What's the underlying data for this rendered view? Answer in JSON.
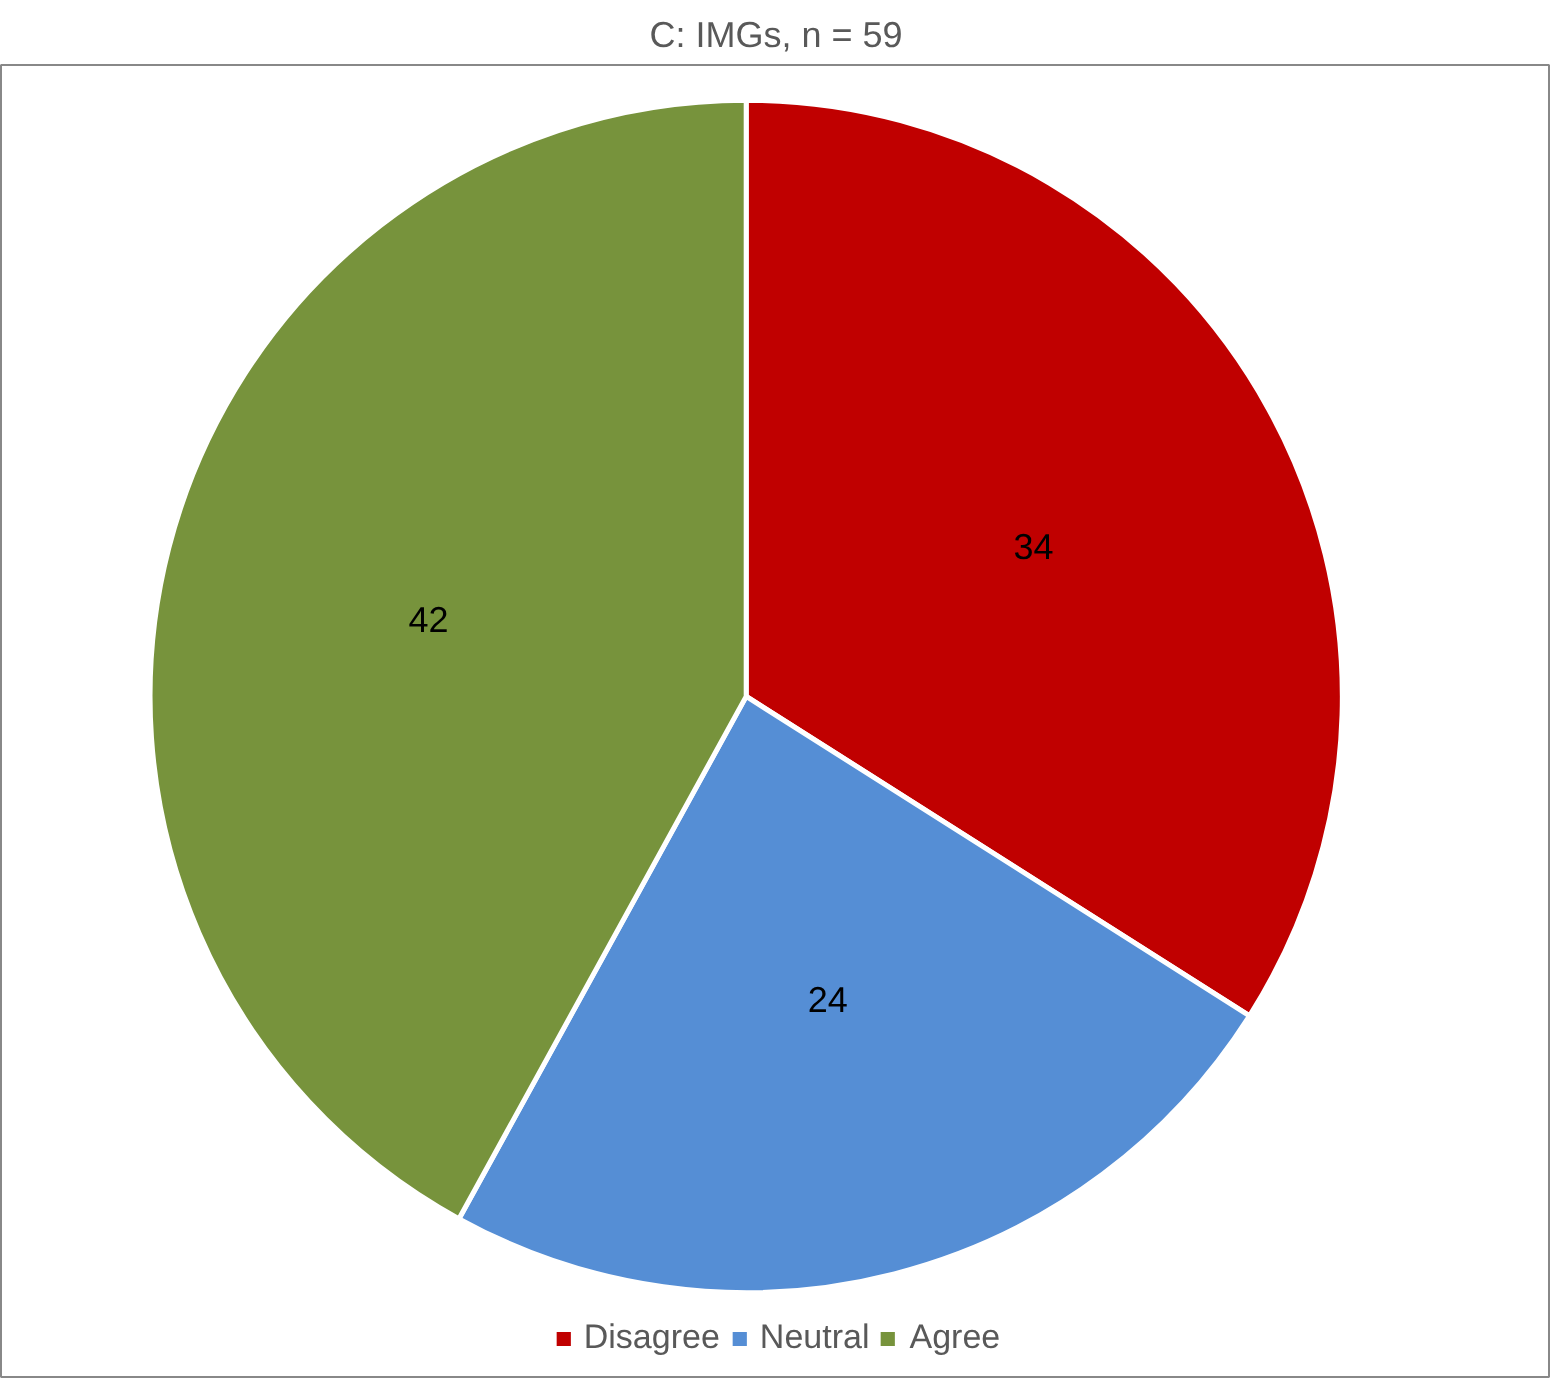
{
  "chart_data": {
    "type": "pie",
    "title": "C: IMGs, n = 59",
    "categories": [
      "Disagree",
      "Neutral",
      "Agree"
    ],
    "values": [
      34,
      24,
      42
    ],
    "colors": [
      "#c00000",
      "#558ed5",
      "#77933c"
    ],
    "data_labels": true,
    "legend": "bottom"
  }
}
